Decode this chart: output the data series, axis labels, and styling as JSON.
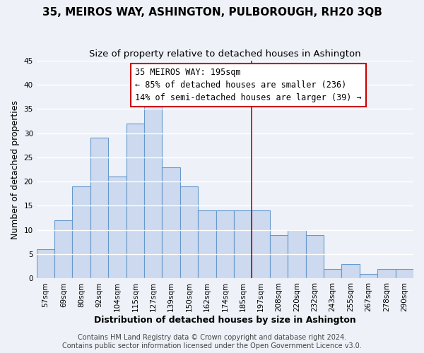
{
  "title": "35, MEIROS WAY, ASHINGTON, PULBOROUGH, RH20 3QB",
  "subtitle": "Size of property relative to detached houses in Ashington",
  "xlabel": "Distribution of detached houses by size in Ashington",
  "ylabel": "Number of detached properties",
  "bin_labels": [
    "57sqm",
    "69sqm",
    "80sqm",
    "92sqm",
    "104sqm",
    "115sqm",
    "127sqm",
    "139sqm",
    "150sqm",
    "162sqm",
    "174sqm",
    "185sqm",
    "197sqm",
    "208sqm",
    "220sqm",
    "232sqm",
    "243sqm",
    "255sqm",
    "267sqm",
    "278sqm",
    "290sqm"
  ],
  "bar_values": [
    6,
    12,
    19,
    29,
    21,
    32,
    37,
    23,
    19,
    14,
    14,
    14,
    14,
    9,
    10,
    9,
    2,
    3,
    1,
    2,
    2
  ],
  "bar_color": "#ccd9ee",
  "bar_edge_color": "#6699cc",
  "vline_index": 12,
  "annotation_title": "35 MEIROS WAY: 195sqm",
  "annotation_line1": "← 85% of detached houses are smaller (236)",
  "annotation_line2": "14% of semi-detached houses are larger (39) →",
  "vline_color": "#cc0000",
  "ylim": [
    0,
    45
  ],
  "yticks": [
    0,
    5,
    10,
    15,
    20,
    25,
    30,
    35,
    40,
    45
  ],
  "footnote1": "Contains HM Land Registry data © Crown copyright and database right 2024.",
  "footnote2": "Contains public sector information licensed under the Open Government Licence v3.0.",
  "background_color": "#eef2f8",
  "plot_bg_color": "#eef2f8",
  "grid_color": "#ffffff",
  "title_fontsize": 11,
  "subtitle_fontsize": 9.5,
  "axis_label_fontsize": 9,
  "tick_fontsize": 7.5,
  "annotation_fontsize": 8.5,
  "footnote_fontsize": 7
}
